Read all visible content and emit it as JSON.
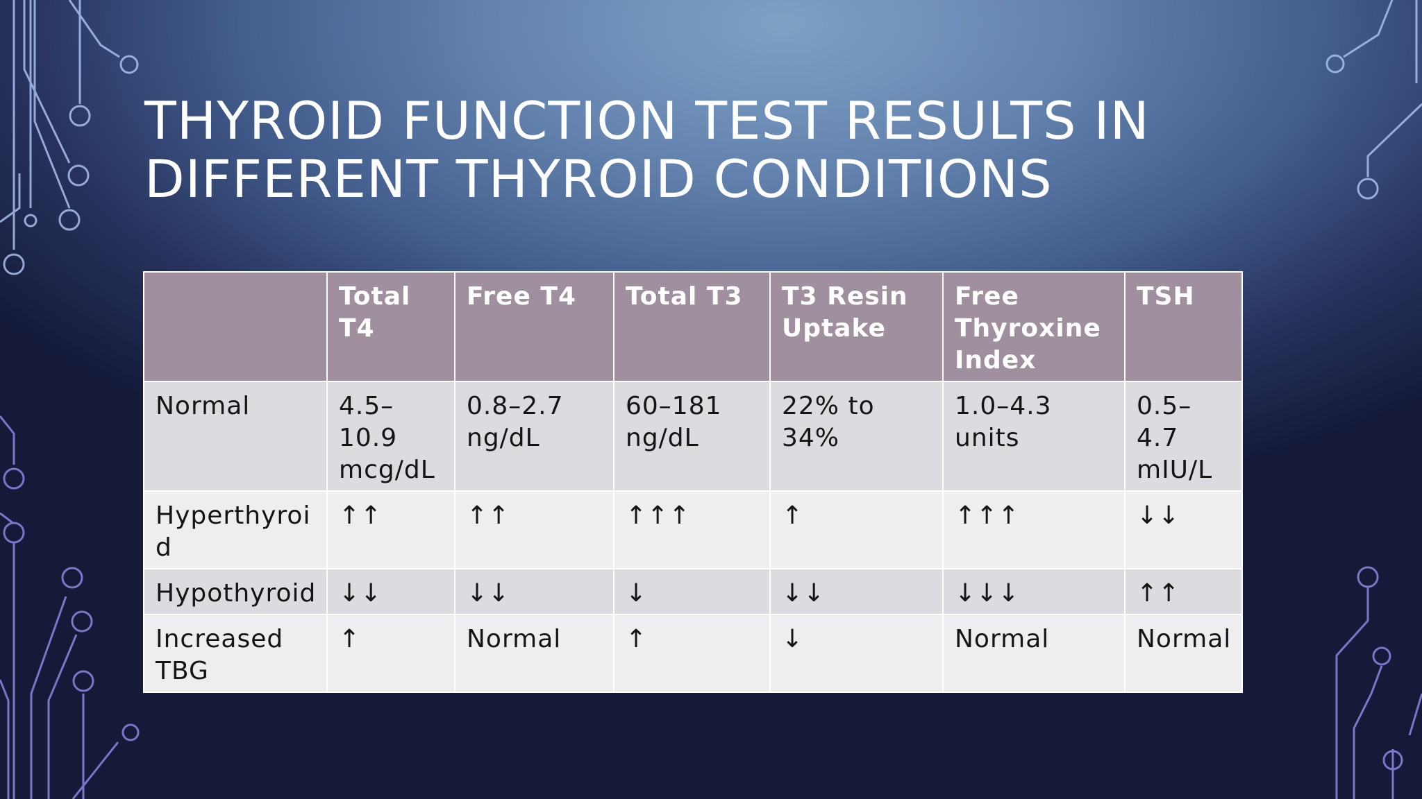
{
  "slide": {
    "title": "Thyroid Function Test Results in Different Thyroid Conditions"
  },
  "table": {
    "columns": [
      "",
      "Total T4",
      "Free T4",
      "Total T3",
      "T3 Resin Uptake",
      "Free Thyroxine Index",
      "TSH"
    ],
    "rows": [
      [
        "Normal",
        "4.5–10.9 mcg/dL",
        "0.8–2.7 ng/dL",
        "60–181 ng/dL",
        "22% to 34%",
        "1.0–4.3 units",
        "0.5–4.7 mIU/L"
      ],
      [
        "Hyperthyroid",
        "↑↑",
        "↑↑",
        "↑↑↑",
        "↑",
        "↑↑↑",
        "↓↓"
      ],
      [
        "Hypothyroid",
        "↓↓",
        "↓↓",
        "↓",
        "↓↓",
        "↓↓↓",
        "↑↑"
      ],
      [
        "Increased TBG",
        "↑",
        "Normal",
        "↑",
        "↓",
        "Normal",
        "Normal"
      ]
    ]
  },
  "colors": {
    "header_fill": "#a08f9f",
    "row_fill_dark": "#dcdbdf",
    "row_fill_light": "#eeedf0",
    "title_text": "#ffffff",
    "circuit_left": "#9fb6e8",
    "circuit_bottom_left": "#8a86e0"
  }
}
